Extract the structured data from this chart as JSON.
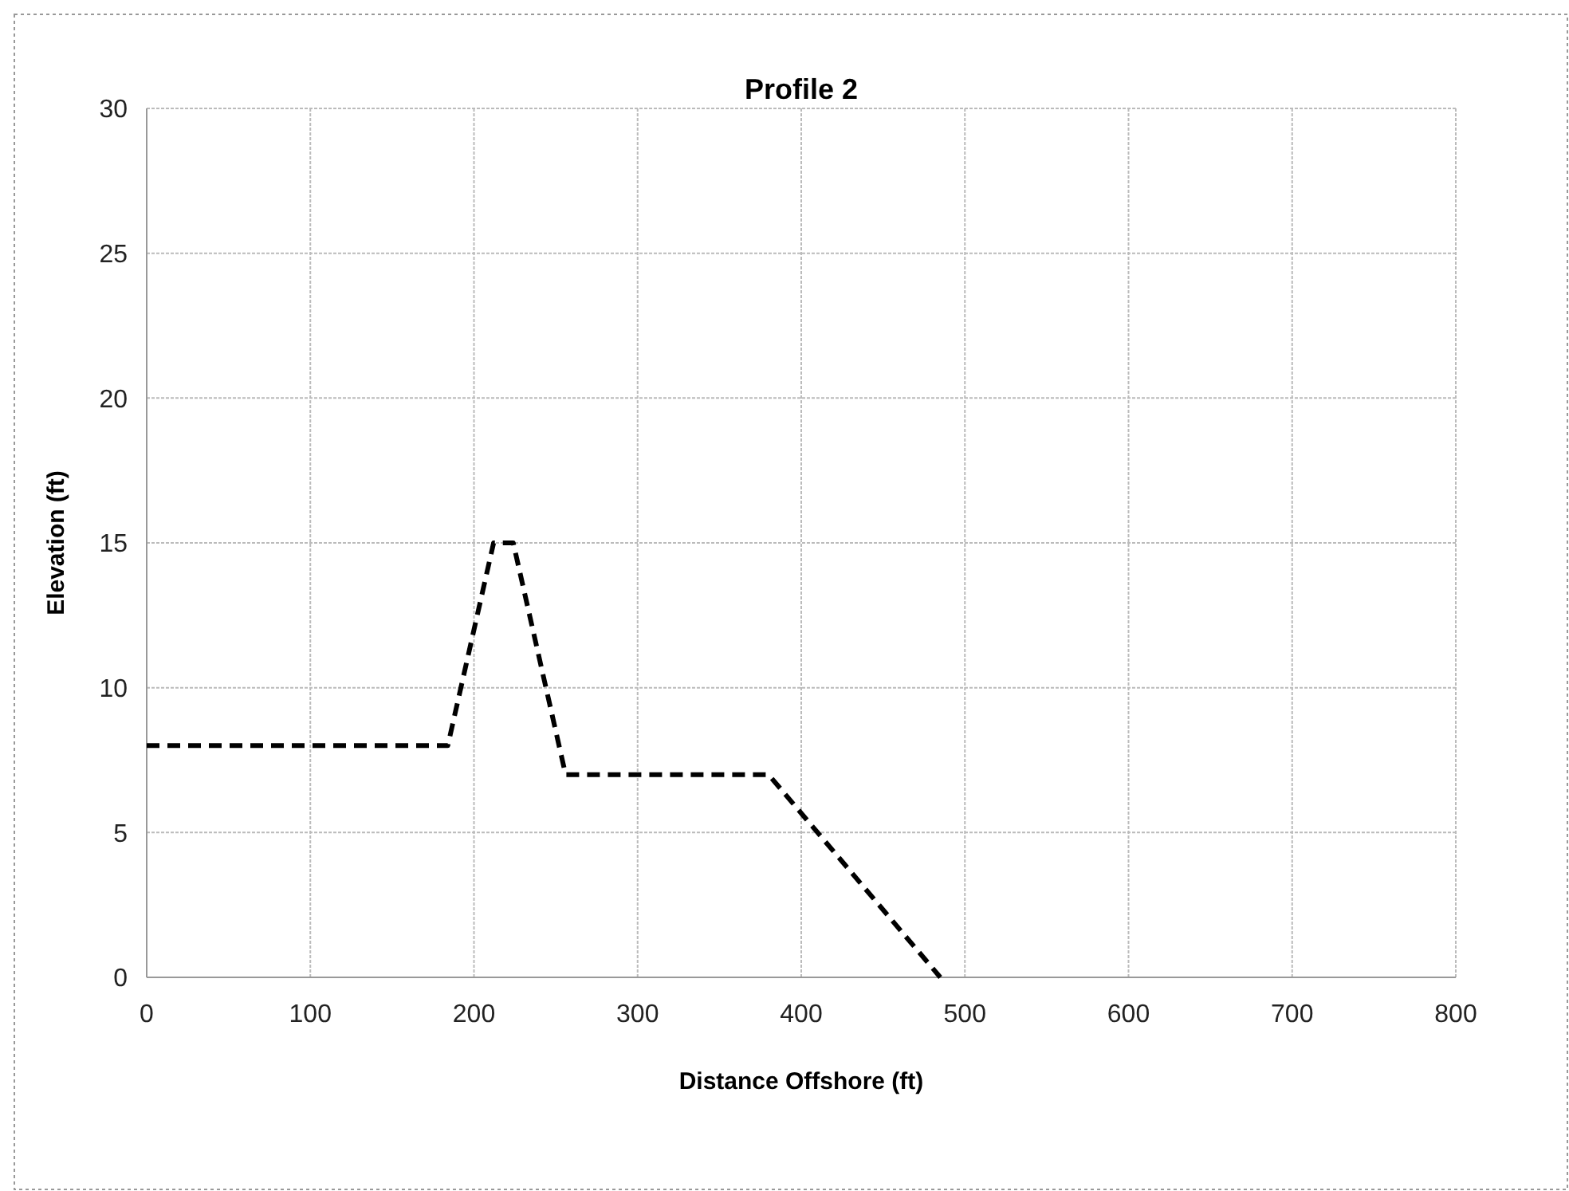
{
  "chart_data": {
    "type": "line",
    "title": "Profile 2",
    "xlabel": "Distance Offshore (ft)",
    "ylabel": "Elevation (ft)",
    "x": [
      0,
      184,
      212,
      224,
      256,
      380,
      485
    ],
    "series": [
      {
        "color": "#000000",
        "values": [
          8,
          8,
          15,
          15,
          7,
          7,
          0
        ]
      }
    ],
    "xlim": [
      0,
      800
    ],
    "xticks": [
      0,
      100,
      200,
      300,
      400,
      500,
      600,
      700,
      800
    ],
    "ylim": [
      0,
      30
    ],
    "yticks": [
      0,
      5,
      10,
      15,
      20,
      25,
      30
    ],
    "grid": true,
    "marker": "none",
    "line_style": "dashed"
  }
}
